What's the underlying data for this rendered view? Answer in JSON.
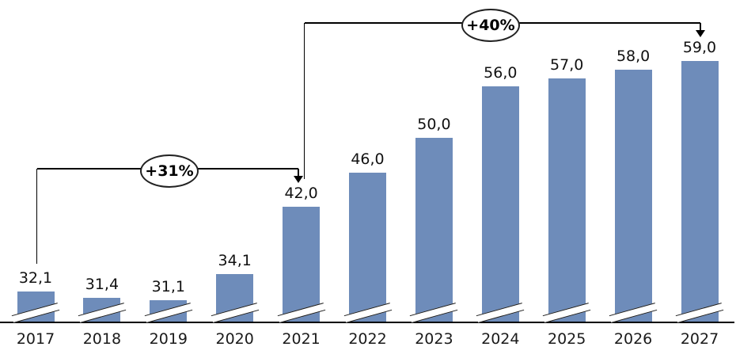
{
  "chart_data": {
    "type": "bar",
    "title": "",
    "xlabel": "",
    "ylabel": "",
    "categories": [
      "2017",
      "2018",
      "2019",
      "2020",
      "2021",
      "2022",
      "2023",
      "2024",
      "2025",
      "2026",
      "2027"
    ],
    "values": [
      32.1,
      31.4,
      31.1,
      34.1,
      42.0,
      46.0,
      50.0,
      56.0,
      57.0,
      58.0,
      59.0
    ],
    "value_labels": [
      "32,1",
      "31,4",
      "31,1",
      "34,1",
      "42,0",
      "46,0",
      "50,0",
      "56,0",
      "57,0",
      "58,0",
      "59,0"
    ],
    "grid": false,
    "legend": "none",
    "axis_break_marks": true,
    "bar_color": "#6e8cba",
    "axis_color": "#000000",
    "label_color": "#1a1a1a",
    "annotations": [
      {
        "label": "+31%",
        "from": "2017",
        "to": "2021"
      },
      {
        "label": "+40%",
        "from": "2021",
        "to": "2027"
      }
    ]
  }
}
